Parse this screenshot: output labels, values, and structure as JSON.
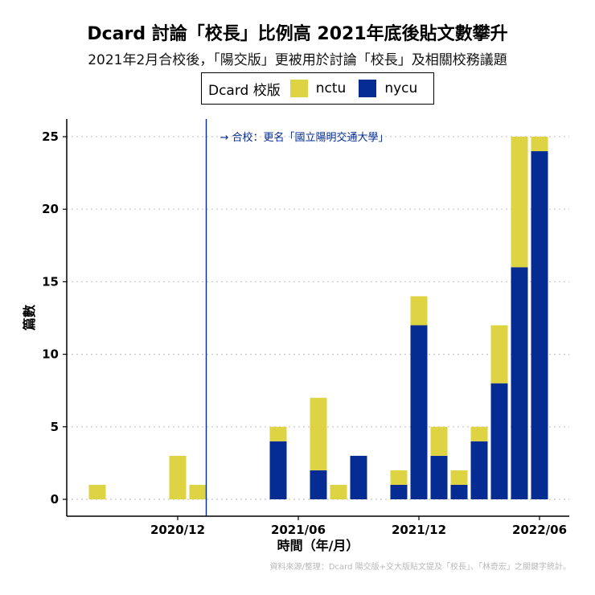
{
  "chart_data": {
    "type": "bar",
    "stacked": true,
    "title": "Dcard 討論「校長」比例高 2021年底後貼文數攀升",
    "subtitle": "2021年2月合校後，「陽交版」更被用於討論「校長」及相關校務議題",
    "xlabel": "時間（年/月）",
    "ylabel": "篇數",
    "ylim": [
      0,
      26
    ],
    "yticks": [
      0,
      5,
      10,
      15,
      20,
      25
    ],
    "grid": "horizontal dotted",
    "legend": {
      "title": "Dcard 校版",
      "placement": "top",
      "items": [
        {
          "name": "nctu",
          "color": "#DDD343"
        },
        {
          "name": "nycu",
          "color": "#052C93"
        }
      ]
    },
    "x_tick_labels": [
      "2020/12",
      "2021/06",
      "2021/12",
      "2022/06"
    ],
    "x_tick_months": [
      "2020-12",
      "2021-06",
      "2021-12",
      "2022-06"
    ],
    "months": [
      "2020-08",
      "2020-09",
      "2020-10",
      "2020-11",
      "2020-12",
      "2021-01",
      "2021-02",
      "2021-03",
      "2021-04",
      "2021-05",
      "2021-06",
      "2021-07",
      "2021-08",
      "2021-09",
      "2021-10",
      "2021-11",
      "2021-12",
      "2022-01",
      "2022-02",
      "2022-03",
      "2022-04",
      "2022-05",
      "2022-06"
    ],
    "series": [
      {
        "name": "nycu",
        "color": "#052C93",
        "values": [
          0,
          0,
          0,
          0,
          0,
          0,
          0,
          0,
          0,
          4,
          0,
          2,
          0,
          3,
          0,
          1,
          12,
          3,
          1,
          4,
          8,
          16,
          24
        ]
      },
      {
        "name": "nctu",
        "color": "#DDD343",
        "values": [
          1,
          0,
          0,
          0,
          3,
          1,
          0,
          0,
          0,
          1,
          0,
          5,
          1,
          0,
          0,
          1,
          2,
          2,
          1,
          1,
          4,
          9,
          1
        ]
      }
    ],
    "annotation": {
      "month": "2021-02",
      "text": "→ 合校：更名「國立陽明交通大學」",
      "color": "#052C93"
    }
  },
  "source_note": "資料來源/整理：Dcard 陽交版+交大版貼文提及「校長」、「林奇宏」之關鍵字統計。"
}
